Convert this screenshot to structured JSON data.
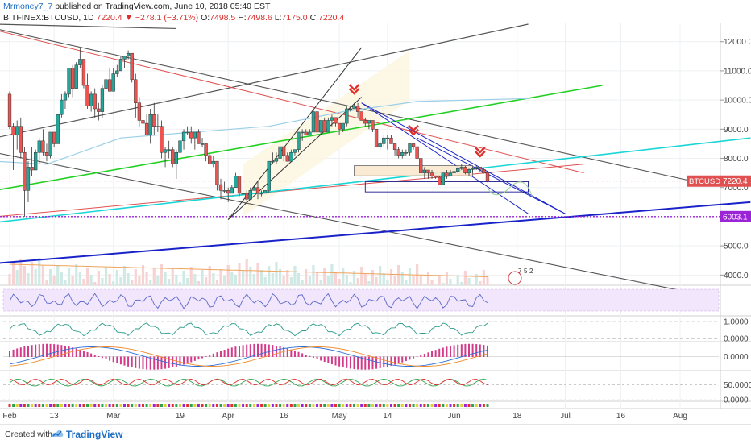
{
  "header": {
    "author": "Mrmoney7_7",
    "published_text": "published on TradingView.com, June 10, 2018 05:40 EST",
    "symbol": "BITFINEX:BTCUSD, 1D",
    "last": "7220.4",
    "change": "−278.1 (−3.71%)",
    "o_label": "O:",
    "o_value": "7498.5",
    "h_label": "H:",
    "h_value": "7498.6",
    "l_label": "L:",
    "l_value": "7175.0",
    "c_label": "C:",
    "c_value": "7220.4"
  },
  "footer": {
    "created_with": "Created with",
    "brand": "TradingView"
  },
  "colors": {
    "up": "#26a69a",
    "down": "#ef5350",
    "green_line": "#22d022",
    "cyan_line": "#18d6d6",
    "blue_line": "#1822c8",
    "red_line": "#e05050",
    "ma_line": "#9ccfe8",
    "purple_level": "#9b24d6"
  },
  "chart_data": {
    "type": "candlestick",
    "symbol": "BTCUSD",
    "price_axis": {
      "ticks": [
        4000,
        5000,
        6000,
        7000,
        8000,
        9000,
        10000,
        11000,
        12000
      ],
      "tick_labels": [
        "4000.0",
        "5000.0",
        "6000.0",
        "7000.0",
        "8000.0",
        "9000.0",
        "10000.0",
        "11000.0",
        "12000.0"
      ],
      "range": [
        3650,
        12600
      ]
    },
    "time_axis": {
      "labels": [
        "Feb",
        "13",
        "Mar",
        "19",
        "Apr",
        "16",
        "May",
        "14",
        "Jun",
        "18",
        "Jul",
        "16",
        "Aug"
      ],
      "start_date": "2018-02-01",
      "end_date": "2018-08-06"
    },
    "last_price": {
      "symbol_label": "BTCUSD",
      "value": "7220.4",
      "numeric": 7220.4
    },
    "level": {
      "value": "6003.1",
      "numeric": 6003.1
    },
    "ohlc": [
      {
        "date": "2018-02-01",
        "o": 10200,
        "h": 10300,
        "l": 9000,
        "c": 9100
      },
      {
        "date": "2018-02-02",
        "o": 9100,
        "h": 9200,
        "l": 7600,
        "c": 8800
      },
      {
        "date": "2018-02-03",
        "o": 8800,
        "h": 9300,
        "l": 8300,
        "c": 9100
      },
      {
        "date": "2018-02-04",
        "o": 9100,
        "h": 9400,
        "l": 8000,
        "c": 8200
      },
      {
        "date": "2018-02-05",
        "o": 8200,
        "h": 8400,
        "l": 6000,
        "c": 6900
      },
      {
        "date": "2018-02-06",
        "o": 6900,
        "h": 7900,
        "l": 6500,
        "c": 7700
      },
      {
        "date": "2018-02-07",
        "o": 7700,
        "h": 8400,
        "l": 7400,
        "c": 7600
      },
      {
        "date": "2018-02-08",
        "o": 7600,
        "h": 8300,
        "l": 7600,
        "c": 8200
      },
      {
        "date": "2018-02-09",
        "o": 8200,
        "h": 8700,
        "l": 7800,
        "c": 8600
      },
      {
        "date": "2018-02-10",
        "o": 8600,
        "h": 9000,
        "l": 8100,
        "c": 8200
      },
      {
        "date": "2018-02-11",
        "o": 8200,
        "h": 8500,
        "l": 7900,
        "c": 8100
      },
      {
        "date": "2018-02-12",
        "o": 8100,
        "h": 8900,
        "l": 8000,
        "c": 8900
      },
      {
        "date": "2018-02-13",
        "o": 8900,
        "h": 8900,
        "l": 8400,
        "c": 8500
      },
      {
        "date": "2018-02-14",
        "o": 8500,
        "h": 9500,
        "l": 8500,
        "c": 9500
      },
      {
        "date": "2018-02-15",
        "o": 9500,
        "h": 10200,
        "l": 9400,
        "c": 10000
      },
      {
        "date": "2018-02-16",
        "o": 10000,
        "h": 10300,
        "l": 9700,
        "c": 10200
      },
      {
        "date": "2018-02-17",
        "o": 10200,
        "h": 11100,
        "l": 10100,
        "c": 11100
      },
      {
        "date": "2018-02-18",
        "o": 11100,
        "h": 11200,
        "l": 10100,
        "c": 10400
      },
      {
        "date": "2018-02-19",
        "o": 10400,
        "h": 11300,
        "l": 10400,
        "c": 11200
      },
      {
        "date": "2018-02-20",
        "o": 11200,
        "h": 11800,
        "l": 11100,
        "c": 11400
      },
      {
        "date": "2018-02-21",
        "o": 11400,
        "h": 11400,
        "l": 10400,
        "c": 10500
      },
      {
        "date": "2018-02-22",
        "o": 10500,
        "h": 10900,
        "l": 9700,
        "c": 9800
      },
      {
        "date": "2018-02-23",
        "o": 9800,
        "h": 10300,
        "l": 9600,
        "c": 10200
      },
      {
        "date": "2018-02-24",
        "o": 10200,
        "h": 10400,
        "l": 9400,
        "c": 9700
      },
      {
        "date": "2018-02-25",
        "o": 9700,
        "h": 9900,
        "l": 9300,
        "c": 9600
      },
      {
        "date": "2018-02-26",
        "o": 9600,
        "h": 10500,
        "l": 9400,
        "c": 10400
      },
      {
        "date": "2018-02-27",
        "o": 10400,
        "h": 10900,
        "l": 10300,
        "c": 10700
      },
      {
        "date": "2018-02-28",
        "o": 10700,
        "h": 11100,
        "l": 10300,
        "c": 10300
      },
      {
        "date": "2018-03-01",
        "o": 10300,
        "h": 11100,
        "l": 10300,
        "c": 10900
      },
      {
        "date": "2018-03-02",
        "o": 10900,
        "h": 11200,
        "l": 10800,
        "c": 11000
      },
      {
        "date": "2018-03-03",
        "o": 11000,
        "h": 11500,
        "l": 11000,
        "c": 11400
      },
      {
        "date": "2018-03-04",
        "o": 11400,
        "h": 11500,
        "l": 11100,
        "c": 11500
      },
      {
        "date": "2018-03-05",
        "o": 11500,
        "h": 11700,
        "l": 11400,
        "c": 11600
      },
      {
        "date": "2018-03-06",
        "o": 11600,
        "h": 11600,
        "l": 10600,
        "c": 10700
      },
      {
        "date": "2018-03-07",
        "o": 10700,
        "h": 10900,
        "l": 9400,
        "c": 9900
      },
      {
        "date": "2018-03-08",
        "o": 9900,
        "h": 10100,
        "l": 9100,
        "c": 9300
      },
      {
        "date": "2018-03-09",
        "o": 9300,
        "h": 9400,
        "l": 8400,
        "c": 9200
      },
      {
        "date": "2018-03-10",
        "o": 9200,
        "h": 9500,
        "l": 8800,
        "c": 8800
      },
      {
        "date": "2018-03-11",
        "o": 8800,
        "h": 9700,
        "l": 8500,
        "c": 9500
      },
      {
        "date": "2018-03-12",
        "o": 9500,
        "h": 9900,
        "l": 8800,
        "c": 9100
      },
      {
        "date": "2018-03-13",
        "o": 9100,
        "h": 9500,
        "l": 8900,
        "c": 9100
      },
      {
        "date": "2018-03-14",
        "o": 9100,
        "h": 9300,
        "l": 8000,
        "c": 8200
      },
      {
        "date": "2018-03-15",
        "o": 8200,
        "h": 8400,
        "l": 7700,
        "c": 8300
      },
      {
        "date": "2018-03-16",
        "o": 8300,
        "h": 8600,
        "l": 8000,
        "c": 8300
      },
      {
        "date": "2018-03-17",
        "o": 8300,
        "h": 8400,
        "l": 7700,
        "c": 7800
      },
      {
        "date": "2018-03-18",
        "o": 7800,
        "h": 8300,
        "l": 7300,
        "c": 8200
      },
      {
        "date": "2018-03-19",
        "o": 8200,
        "h": 8700,
        "l": 8100,
        "c": 8600
      },
      {
        "date": "2018-03-20",
        "o": 8600,
        "h": 9000,
        "l": 8300,
        "c": 8900
      },
      {
        "date": "2018-03-21",
        "o": 8900,
        "h": 9100,
        "l": 8800,
        "c": 8900
      },
      {
        "date": "2018-03-22",
        "o": 8900,
        "h": 9100,
        "l": 8500,
        "c": 8700
      },
      {
        "date": "2018-03-23",
        "o": 8700,
        "h": 8900,
        "l": 8300,
        "c": 8900
      },
      {
        "date": "2018-03-24",
        "o": 8900,
        "h": 9000,
        "l": 8500,
        "c": 8500
      },
      {
        "date": "2018-03-25",
        "o": 8500,
        "h": 8700,
        "l": 8400,
        "c": 8500
      },
      {
        "date": "2018-03-26",
        "o": 8500,
        "h": 8500,
        "l": 7900,
        "c": 8100
      },
      {
        "date": "2018-03-27",
        "o": 8100,
        "h": 8200,
        "l": 7800,
        "c": 7800
      },
      {
        "date": "2018-03-28",
        "o": 7800,
        "h": 8100,
        "l": 7700,
        "c": 7900
      },
      {
        "date": "2018-03-29",
        "o": 7900,
        "h": 7900,
        "l": 6900,
        "c": 7100
      },
      {
        "date": "2018-03-30",
        "o": 7100,
        "h": 7300,
        "l": 6600,
        "c": 6900
      },
      {
        "date": "2018-03-31",
        "o": 6900,
        "h": 7200,
        "l": 6800,
        "c": 6900
      },
      {
        "date": "2018-04-01",
        "o": 6900,
        "h": 7000,
        "l": 6500,
        "c": 6800
      },
      {
        "date": "2018-04-02",
        "o": 6800,
        "h": 7100,
        "l": 6800,
        "c": 7000
      },
      {
        "date": "2018-04-03",
        "o": 7000,
        "h": 7500,
        "l": 7000,
        "c": 7400
      },
      {
        "date": "2018-04-04",
        "o": 7400,
        "h": 7400,
        "l": 6700,
        "c": 6800
      },
      {
        "date": "2018-04-05",
        "o": 6800,
        "h": 6900,
        "l": 6600,
        "c": 6800
      },
      {
        "date": "2018-04-06",
        "o": 6800,
        "h": 6900,
        "l": 6500,
        "c": 6600
      },
      {
        "date": "2018-04-07",
        "o": 6600,
        "h": 7000,
        "l": 6600,
        "c": 6900
      },
      {
        "date": "2018-04-08",
        "o": 6900,
        "h": 7100,
        "l": 6900,
        "c": 7000
      },
      {
        "date": "2018-04-09",
        "o": 7000,
        "h": 7200,
        "l": 6600,
        "c": 6800
      },
      {
        "date": "2018-04-10",
        "o": 6800,
        "h": 6900,
        "l": 6700,
        "c": 6800
      },
      {
        "date": "2018-04-11",
        "o": 6800,
        "h": 6900,
        "l": 6800,
        "c": 6900
      },
      {
        "date": "2018-04-12",
        "o": 6900,
        "h": 7900,
        "l": 6800,
        "c": 7900
      },
      {
        "date": "2018-04-13",
        "o": 7900,
        "h": 8200,
        "l": 7800,
        "c": 7900
      },
      {
        "date": "2018-04-14",
        "o": 7900,
        "h": 8200,
        "l": 7800,
        "c": 8000
      },
      {
        "date": "2018-04-15",
        "o": 8000,
        "h": 8400,
        "l": 8000,
        "c": 8400
      },
      {
        "date": "2018-04-16",
        "o": 8400,
        "h": 8400,
        "l": 7900,
        "c": 8100
      },
      {
        "date": "2018-04-17",
        "o": 8100,
        "h": 8200,
        "l": 7900,
        "c": 7900
      },
      {
        "date": "2018-04-18",
        "o": 7900,
        "h": 8300,
        "l": 7900,
        "c": 8200
      },
      {
        "date": "2018-04-19",
        "o": 8200,
        "h": 8300,
        "l": 8100,
        "c": 8300
      },
      {
        "date": "2018-04-20",
        "o": 8300,
        "h": 8900,
        "l": 8200,
        "c": 8900
      },
      {
        "date": "2018-04-21",
        "o": 8900,
        "h": 9000,
        "l": 8600,
        "c": 8900
      },
      {
        "date": "2018-04-22",
        "o": 8900,
        "h": 9000,
        "l": 8800,
        "c": 8800
      },
      {
        "date": "2018-04-23",
        "o": 8800,
        "h": 9000,
        "l": 8800,
        "c": 8900
      },
      {
        "date": "2018-04-24",
        "o": 8900,
        "h": 9700,
        "l": 8900,
        "c": 9600
      },
      {
        "date": "2018-04-25",
        "o": 9600,
        "h": 9700,
        "l": 8800,
        "c": 8900
      },
      {
        "date": "2018-04-26",
        "o": 8900,
        "h": 9300,
        "l": 8800,
        "c": 9300
      },
      {
        "date": "2018-04-27",
        "o": 9300,
        "h": 9400,
        "l": 8900,
        "c": 8900
      },
      {
        "date": "2018-04-28",
        "o": 8900,
        "h": 9400,
        "l": 8900,
        "c": 9300
      },
      {
        "date": "2018-04-29",
        "o": 9300,
        "h": 9500,
        "l": 9100,
        "c": 9400
      },
      {
        "date": "2018-04-30",
        "o": 9400,
        "h": 9400,
        "l": 9100,
        "c": 9200
      },
      {
        "date": "2018-05-01",
        "o": 9200,
        "h": 9200,
        "l": 8800,
        "c": 9000
      },
      {
        "date": "2018-05-02",
        "o": 9000,
        "h": 9200,
        "l": 8900,
        "c": 9200
      },
      {
        "date": "2018-05-03",
        "o": 9200,
        "h": 9800,
        "l": 9100,
        "c": 9700
      },
      {
        "date": "2018-05-04",
        "o": 9700,
        "h": 9800,
        "l": 9600,
        "c": 9700
      },
      {
        "date": "2018-05-05",
        "o": 9700,
        "h": 9900,
        "l": 9700,
        "c": 9800
      },
      {
        "date": "2018-05-06",
        "o": 9800,
        "h": 9900,
        "l": 9400,
        "c": 9600
      },
      {
        "date": "2018-05-07",
        "o": 9600,
        "h": 9600,
        "l": 9300,
        "c": 9300
      },
      {
        "date": "2018-05-08",
        "o": 9300,
        "h": 9400,
        "l": 9100,
        "c": 9200
      },
      {
        "date": "2018-05-09",
        "o": 9200,
        "h": 9300,
        "l": 9000,
        "c": 9300
      },
      {
        "date": "2018-05-10",
        "o": 9300,
        "h": 9300,
        "l": 8900,
        "c": 9000
      },
      {
        "date": "2018-05-11",
        "o": 9000,
        "h": 9000,
        "l": 8400,
        "c": 8400
      },
      {
        "date": "2018-05-12",
        "o": 8400,
        "h": 8600,
        "l": 8300,
        "c": 8500
      },
      {
        "date": "2018-05-13",
        "o": 8500,
        "h": 8800,
        "l": 8400,
        "c": 8700
      },
      {
        "date": "2018-05-14",
        "o": 8700,
        "h": 8800,
        "l": 8300,
        "c": 8700
      },
      {
        "date": "2018-05-15",
        "o": 8700,
        "h": 8800,
        "l": 8500,
        "c": 8500
      },
      {
        "date": "2018-05-16",
        "o": 8500,
        "h": 8500,
        "l": 8100,
        "c": 8300
      },
      {
        "date": "2018-05-17",
        "o": 8300,
        "h": 8400,
        "l": 8000,
        "c": 8100
      },
      {
        "date": "2018-05-18",
        "o": 8100,
        "h": 8300,
        "l": 8000,
        "c": 8200
      },
      {
        "date": "2018-05-19",
        "o": 8200,
        "h": 8300,
        "l": 8100,
        "c": 8200
      },
      {
        "date": "2018-05-20",
        "o": 8200,
        "h": 8500,
        "l": 8100,
        "c": 8500
      },
      {
        "date": "2018-05-21",
        "o": 8500,
        "h": 8500,
        "l": 8300,
        "c": 8400
      },
      {
        "date": "2018-05-22",
        "o": 8400,
        "h": 8400,
        "l": 7900,
        "c": 8000
      },
      {
        "date": "2018-05-23",
        "o": 8000,
        "h": 8000,
        "l": 7500,
        "c": 7500
      },
      {
        "date": "2018-05-24",
        "o": 7500,
        "h": 7700,
        "l": 7300,
        "c": 7600
      },
      {
        "date": "2018-05-25",
        "o": 7600,
        "h": 7600,
        "l": 7300,
        "c": 7500
      },
      {
        "date": "2018-05-26",
        "o": 7500,
        "h": 7600,
        "l": 7300,
        "c": 7400
      },
      {
        "date": "2018-05-27",
        "o": 7400,
        "h": 7400,
        "l": 7300,
        "c": 7350
      },
      {
        "date": "2018-05-28",
        "o": 7350,
        "h": 7400,
        "l": 7100,
        "c": 7100
      },
      {
        "date": "2018-05-29",
        "o": 7100,
        "h": 7500,
        "l": 7100,
        "c": 7500
      },
      {
        "date": "2018-05-30",
        "o": 7500,
        "h": 7600,
        "l": 7300,
        "c": 7400
      },
      {
        "date": "2018-05-31",
        "o": 7400,
        "h": 7600,
        "l": 7400,
        "c": 7500
      },
      {
        "date": "2018-06-01",
        "o": 7500,
        "h": 7600,
        "l": 7400,
        "c": 7550
      },
      {
        "date": "2018-06-02",
        "o": 7550,
        "h": 7700,
        "l": 7500,
        "c": 7650
      },
      {
        "date": "2018-06-03",
        "o": 7650,
        "h": 7800,
        "l": 7600,
        "c": 7700
      },
      {
        "date": "2018-06-04",
        "o": 7700,
        "h": 7750,
        "l": 7450,
        "c": 7500
      },
      {
        "date": "2018-06-05",
        "o": 7500,
        "h": 7650,
        "l": 7400,
        "c": 7620
      },
      {
        "date": "2018-06-06",
        "o": 7620,
        "h": 7700,
        "l": 7500,
        "c": 7650
      },
      {
        "date": "2018-06-07",
        "o": 7650,
        "h": 7750,
        "l": 7600,
        "c": 7700
      },
      {
        "date": "2018-06-08",
        "o": 7700,
        "h": 7700,
        "l": 7550,
        "c": 7620
      },
      {
        "date": "2018-06-09",
        "o": 7620,
        "h": 7680,
        "l": 7480,
        "c": 7498.5
      },
      {
        "date": "2018-06-10",
        "o": 7498.5,
        "h": 7498.6,
        "l": 7175.0,
        "c": 7220.4
      }
    ],
    "volume_pane": {
      "labels": [
        "7",
        "5",
        "2"
      ]
    },
    "indicator_panes": [
      {
        "name": "oscillator-1",
        "tick_labels": []
      },
      {
        "name": "oscillator-2",
        "tick_labels": [
          "1.0000",
          "0.0000"
        ],
        "ticks": [
          1,
          0
        ],
        "range": [
          -0.2,
          1.3
        ]
      },
      {
        "name": "macd",
        "tick_labels": [
          "0.0000"
        ],
        "ticks": [
          0
        ],
        "range": [
          -1.6,
          1.6
        ]
      },
      {
        "name": "oscillator-3",
        "tick_labels": [
          "50.0000",
          "0.0000"
        ],
        "ticks": [
          50,
          0
        ],
        "range": [
          -5,
          95
        ]
      }
    ],
    "grid": true
  }
}
